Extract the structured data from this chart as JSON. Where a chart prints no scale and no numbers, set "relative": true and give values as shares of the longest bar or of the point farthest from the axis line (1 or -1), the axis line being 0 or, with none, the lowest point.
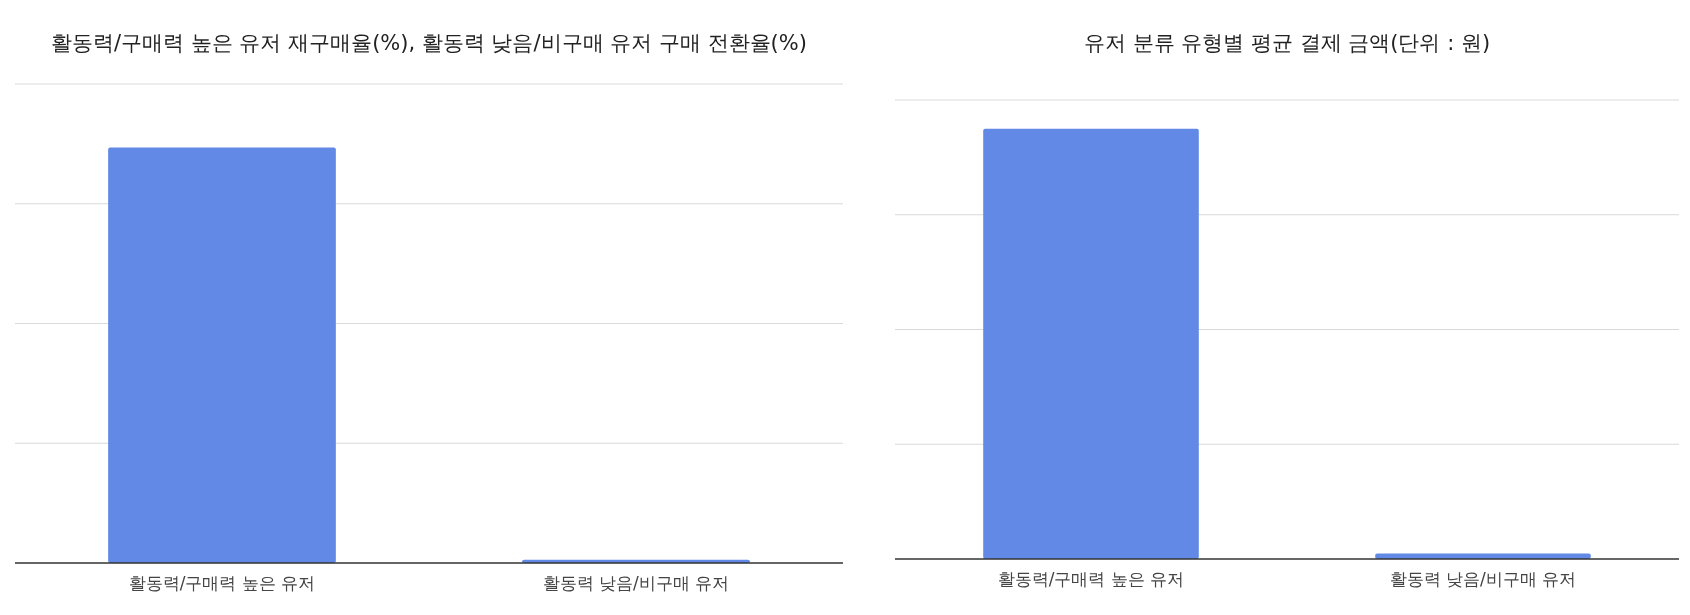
{
  "chart_data": [
    {
      "type": "bar",
      "title": "활동력/구매력 높은 유저 재구매율(%), 활동력 낮음/비구매 유저 구매 전환율(%)",
      "categories": [
        "활동력/구매력 높은 유저",
        "활동력 낮음/비구매 유저"
      ],
      "values": [
        1,
        0.008
      ],
      "color": "#6289e6",
      "relative": true,
      "grid": "y"
    },
    {
      "type": "bar",
      "title": "유저 분류 유형별 평균 결제 금액(단위 : 원)",
      "categories": [
        "활동력/구매력 높은 유저",
        "활동력 낮음/비구매 유저"
      ],
      "values": [
        1,
        0.0125
      ],
      "color": "#6289e6",
      "relative": true,
      "grid": "y"
    }
  ]
}
